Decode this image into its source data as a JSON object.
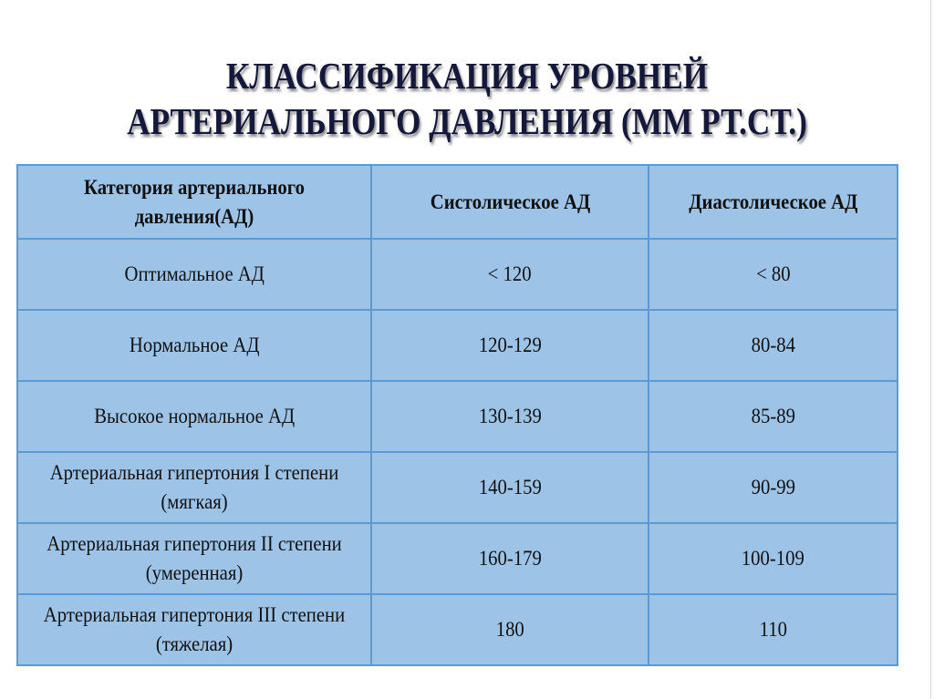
{
  "title": {
    "line1": "КЛАССИФИКАЦИЯ УРОВНЕЙ",
    "line2": "АРТЕРИАЛЬНОГО ДАВЛЕНИЯ (ММ РТ.СТ.)"
  },
  "table": {
    "headers": [
      "Категория артериального давления(АД)",
      "Систолическое АД",
      "Диастолическое АД"
    ],
    "rows": [
      [
        "Оптимальное АД",
        "< 120",
        "< 80"
      ],
      [
        "Нормальное АД",
        "120-129",
        "80-84"
      ],
      [
        "Высокое нормальное АД",
        "130-139",
        "85-89"
      ],
      [
        "Артериальная гипертония I степени (мягкая)",
        "140-159",
        "90-99"
      ],
      [
        "Артериальная гипертония II степени (умеренная)",
        "160-179",
        "100-109"
      ],
      [
        "Артериальная гипертония III степени (тяжелая)",
        "180",
        "110"
      ]
    ]
  },
  "colors": {
    "title": "#14183a",
    "cell_fill": "#9dc3e6",
    "border": "#5b9bd5"
  }
}
